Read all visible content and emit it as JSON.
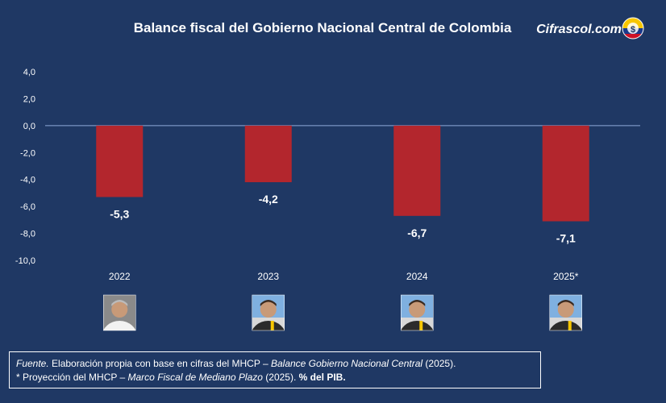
{
  "header": {
    "title": "Balance fiscal del Gobierno Nacional Central de Colombia",
    "brand": "Cifrascol.com"
  },
  "colors": {
    "background": "#1f3864",
    "bar": "#b3262d",
    "text": "#ffffff",
    "zero_line": "#8ea9d8"
  },
  "chart_data": {
    "type": "bar",
    "title": "Balance fiscal del Gobierno Nacional Central de Colombia",
    "xlabel": "",
    "ylabel": "",
    "categories": [
      "2022",
      "2023",
      "2024",
      "2025*"
    ],
    "values": [
      -5.3,
      -4.2,
      -6.7,
      -7.1
    ],
    "data_labels": [
      "-5,3",
      "-4,2",
      "-6,7",
      "-7,1"
    ],
    "ylim": [
      -10,
      4
    ],
    "yticks": [
      4,
      2,
      0,
      -2,
      -4,
      -6,
      -8,
      -10
    ],
    "ytick_labels": [
      "4,0",
      "2,0",
      "0,0",
      "-2,0",
      "-4,0",
      "-6,0",
      "-8,0",
      "-10,0"
    ],
    "grid": false,
    "legend": "none",
    "bar_color": "#b3262d"
  },
  "portraits": [
    {
      "year": "2022",
      "icon": "president-portrait-icon"
    },
    {
      "year": "2023",
      "icon": "president-portrait-icon"
    },
    {
      "year": "2024",
      "icon": "president-portrait-icon"
    },
    {
      "year": "2025*",
      "icon": "president-portrait-icon"
    }
  ],
  "footnote": {
    "line1_label": "Fuente.",
    "line1_text": " Elaboración propia con base en cifras del MHCP – ",
    "line1_source": "Balance Gobierno Nacional Central",
    "line1_year": " (2025).",
    "line2_text": "* Proyección del MHCP – ",
    "line2_source": "Marco Fiscal de Mediano Plazo",
    "line2_year": " (2025). ",
    "line2_unit": "% del PIB."
  }
}
